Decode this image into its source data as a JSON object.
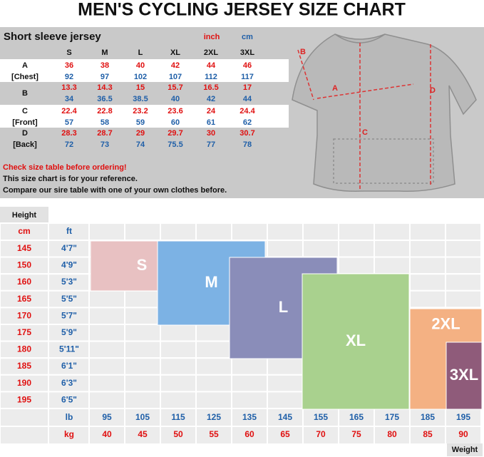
{
  "title": "MEN'S CYCLING JERSEY SIZE CHART",
  "size_table": {
    "heading": "Short sleeve jersey",
    "unit_inch": "inch",
    "unit_cm": "cm",
    "sizes": [
      "S",
      "M",
      "L",
      "XL",
      "2XL",
      "3XL"
    ],
    "rows": [
      {
        "label": [
          "A",
          "[Chest]"
        ],
        "inch": [
          36,
          38,
          40,
          42,
          44,
          46
        ],
        "cm": [
          92,
          97,
          102,
          107,
          112,
          117
        ]
      },
      {
        "label": [
          "B"
        ],
        "inch": [
          13.3,
          14.3,
          15,
          15.7,
          16.5,
          17
        ],
        "cm": [
          34,
          36.5,
          38.5,
          40,
          42,
          44
        ]
      },
      {
        "label": [
          "C",
          "[Front]"
        ],
        "inch": [
          22.4,
          22.8,
          23.2,
          23.6,
          24,
          24.4
        ],
        "cm": [
          57,
          58,
          59,
          60,
          61,
          62
        ]
      },
      {
        "label": [
          "D",
          "[Back]"
        ],
        "inch": [
          28.3,
          28.7,
          29,
          29.7,
          30,
          30.7
        ],
        "cm": [
          72,
          73,
          74,
          75.5,
          77,
          78
        ]
      }
    ]
  },
  "notes": [
    "Check size table before ordering!",
    "This size chart is for your reference.",
    "Compare our sire table with one of your own clothes before."
  ],
  "diagram_labels": [
    "B",
    "A",
    "C",
    "D"
  ],
  "fit_grid": {
    "height_label": "Height",
    "cm_label": "cm",
    "ft_label": "ft",
    "heights_cm": [
      145,
      150,
      160,
      165,
      170,
      175,
      180,
      185,
      190,
      195
    ],
    "heights_ft": [
      "4'7\"",
      "4'9\"",
      "5'3\"",
      "5'5\"",
      "5'7\"",
      "5'9\"",
      "5'11\"",
      "6'1\"",
      "6'3\"",
      "6'5\""
    ],
    "lb_label": "lb",
    "kg_label": "kg",
    "weights_lb": [
      95,
      105,
      115,
      125,
      135,
      145,
      155,
      165,
      175,
      185,
      195
    ],
    "weights_kg": [
      40,
      45,
      50,
      55,
      60,
      65,
      70,
      75,
      80,
      85,
      90
    ],
    "weight_label": "Weight",
    "sizes": [
      {
        "label": "S",
        "color": "#e8c1c2"
      },
      {
        "label": "M",
        "color": "#7cb2e4"
      },
      {
        "label": "L",
        "color": "#8a8db9"
      },
      {
        "label": "XL",
        "color": "#a9d18e"
      },
      {
        "label": "2XL",
        "color": "#f4b183"
      },
      {
        "label": "3XL",
        "color": "#8f5b7a"
      }
    ]
  }
}
